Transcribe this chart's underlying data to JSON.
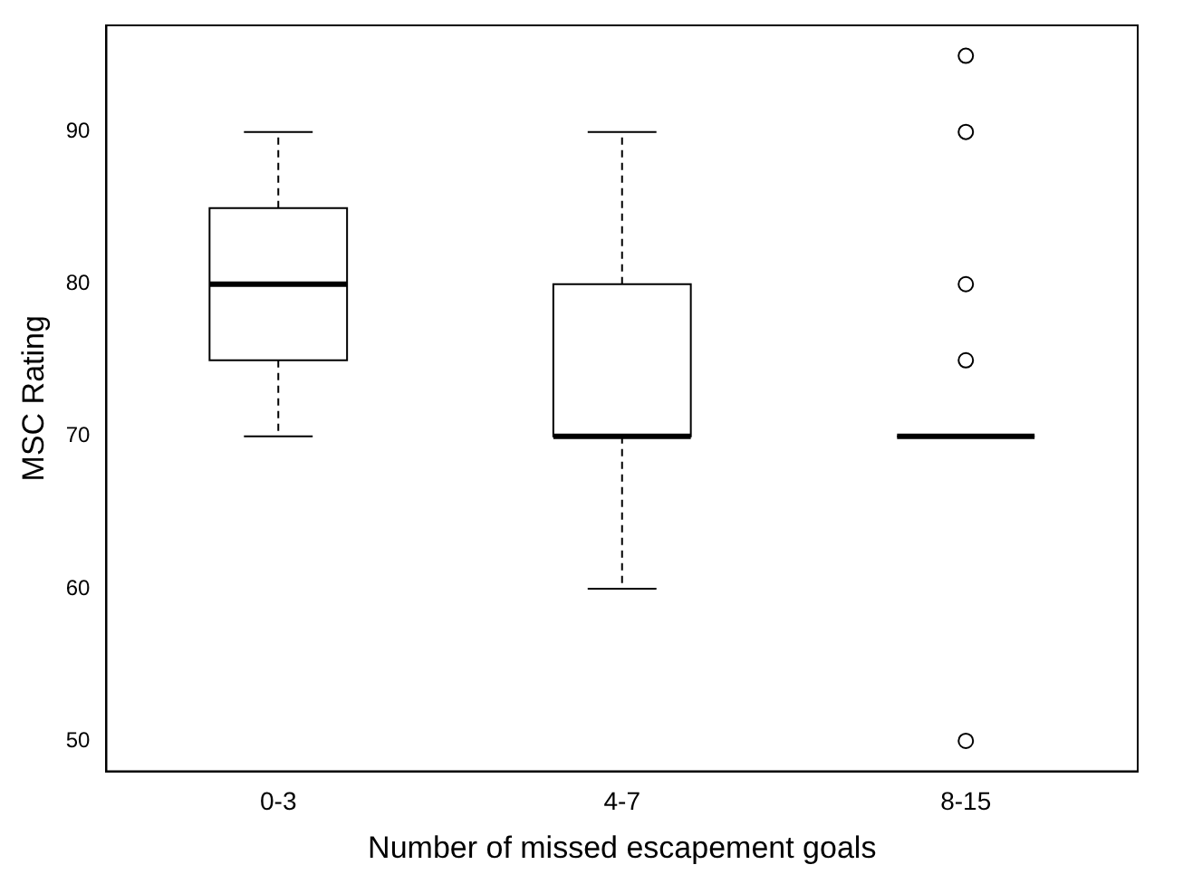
{
  "chart_data": {
    "type": "box",
    "xlabel": "Number of missed escapement goals",
    "ylabel": "MSC Rating",
    "categories": [
      "0-3",
      "4-7",
      "8-15"
    ],
    "boxes": [
      {
        "low": 70,
        "q1": 75,
        "median": 80,
        "q3": 85,
        "high": 90
      },
      {
        "low": 60,
        "q1": 70,
        "median": 70,
        "q3": 80,
        "high": 90
      },
      {
        "low": 70,
        "q1": 70,
        "median": 70,
        "q3": 70,
        "high": 70,
        "outliers": [
          50,
          75,
          80,
          90,
          95
        ]
      }
    ],
    "ylim": [
      48,
      97
    ],
    "yticks": [
      50,
      60,
      70,
      80,
      90
    ],
    "grid": false,
    "legend": false,
    "color": "#000000"
  }
}
